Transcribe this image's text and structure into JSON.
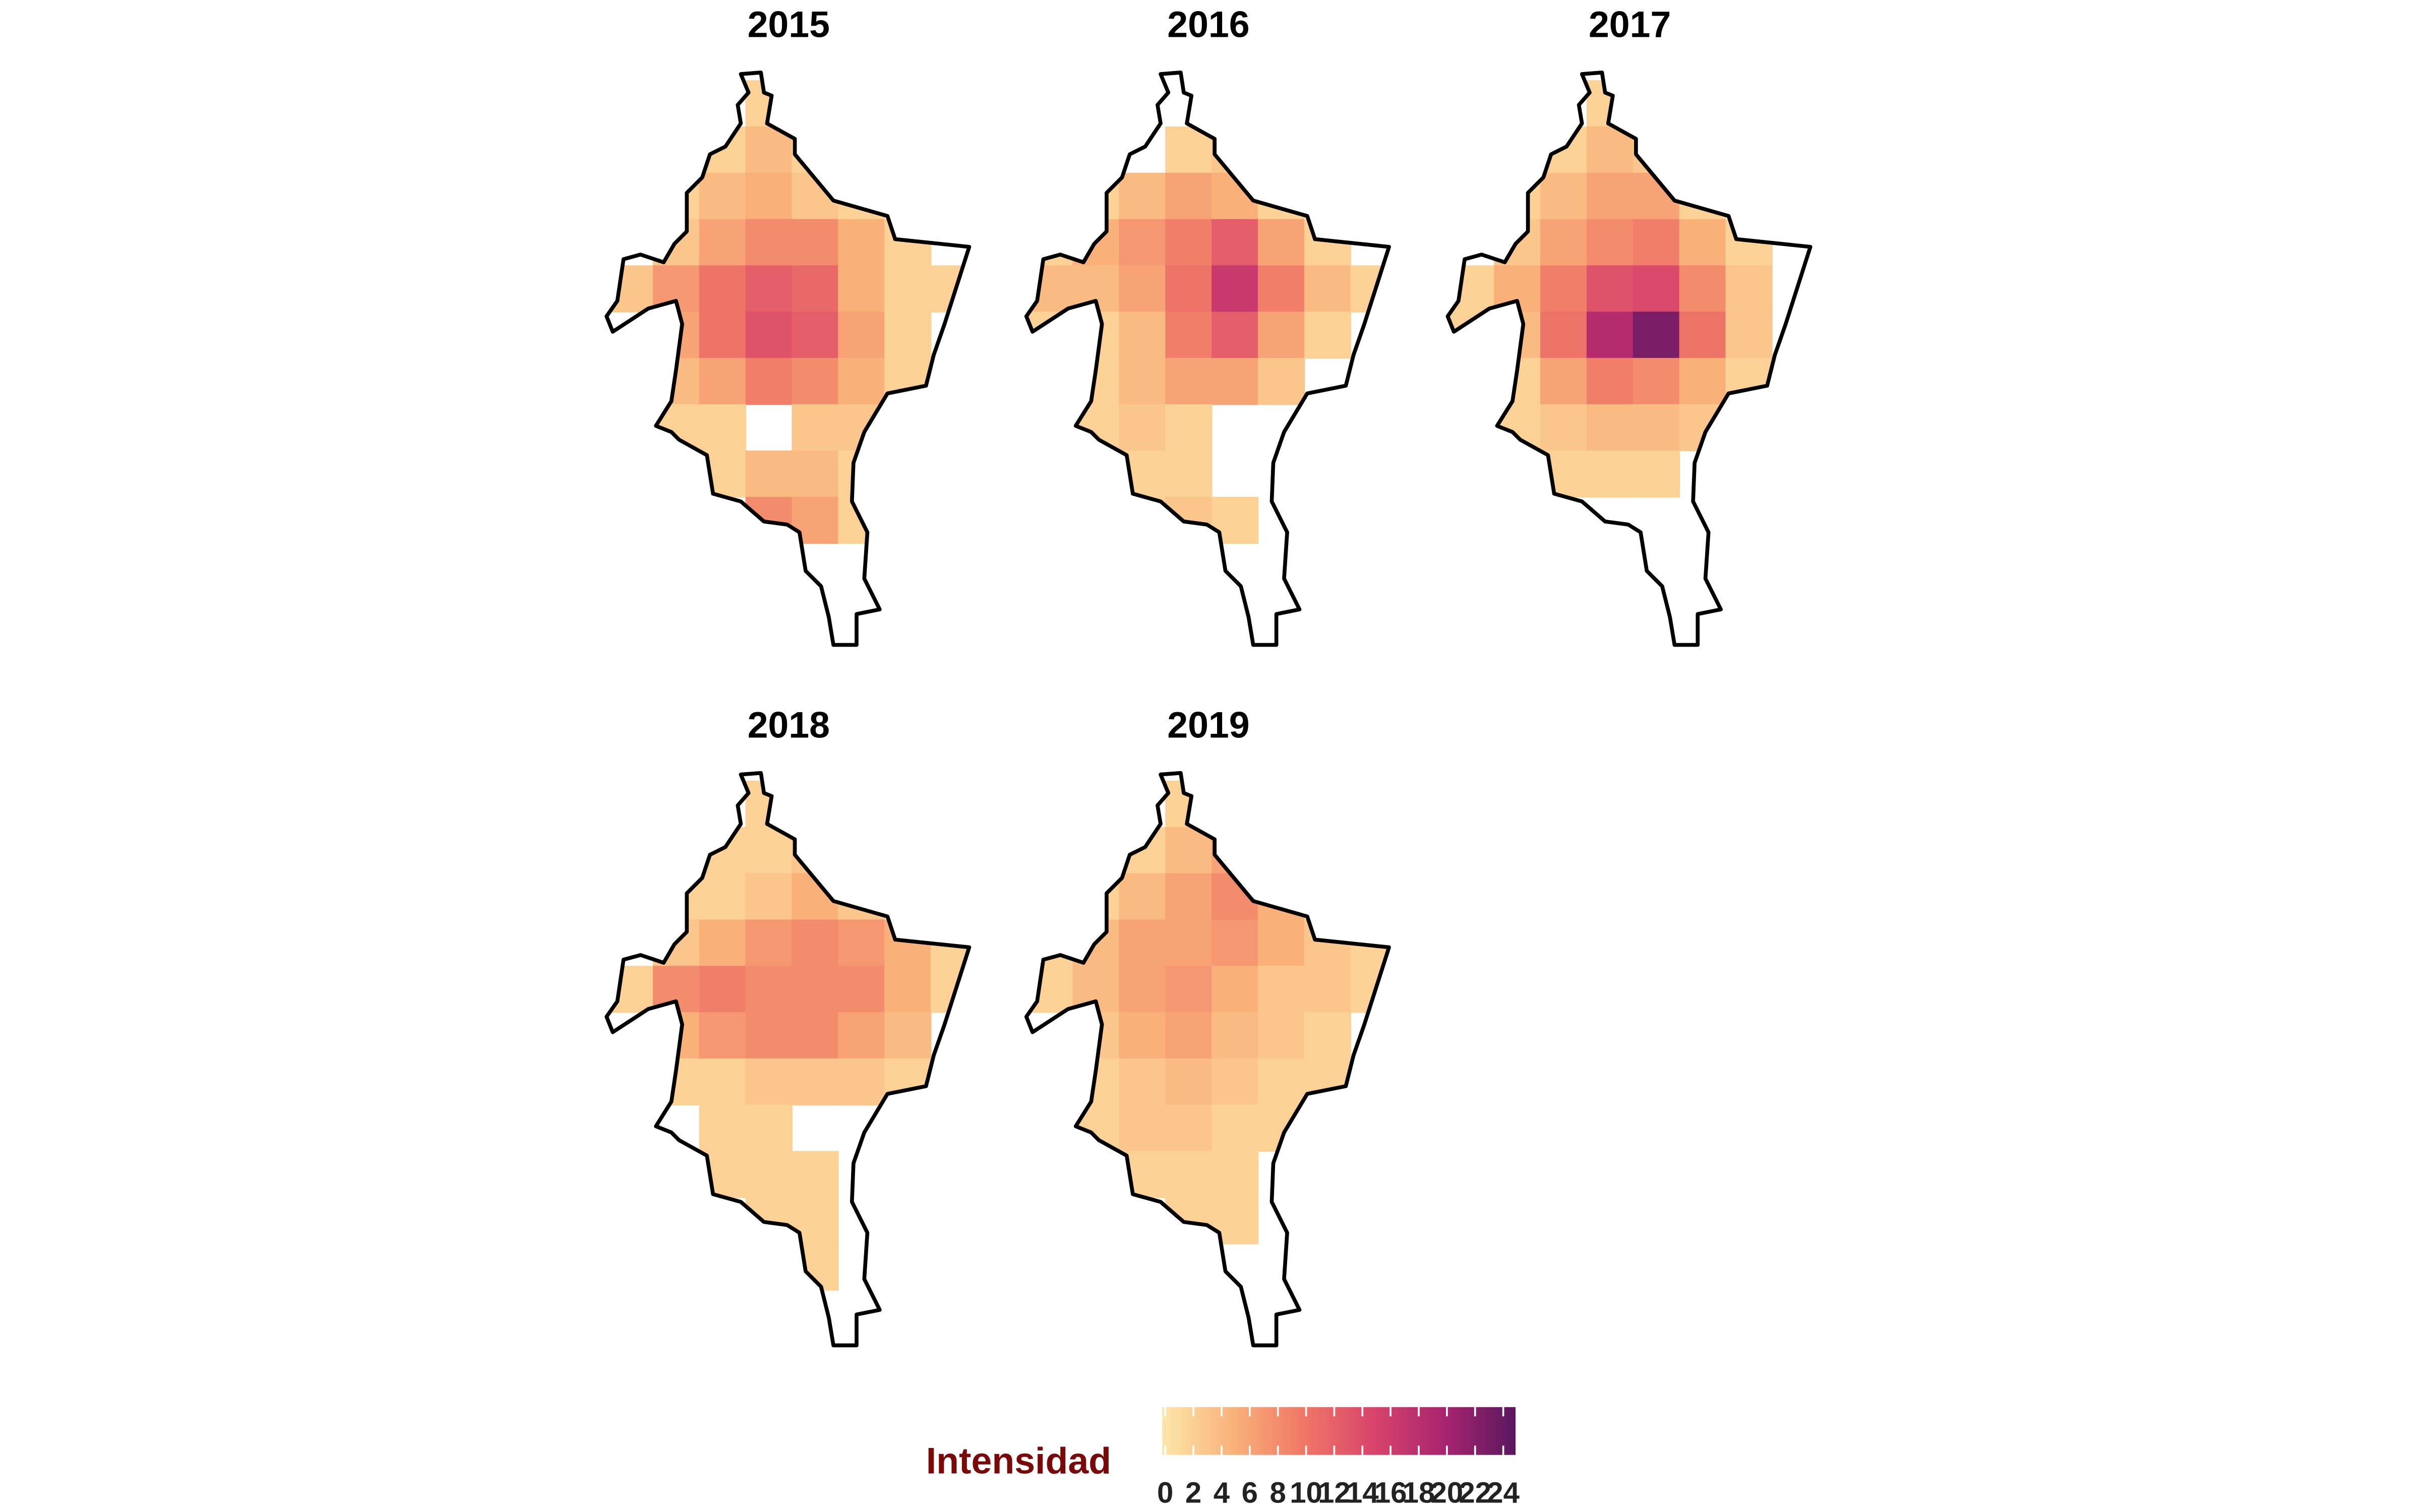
{
  "chart_data": {
    "type": "heatmap",
    "panels": [
      {
        "title": "2015",
        "values": [
          [
            null,
            null,
            null,
            2,
            null,
            null,
            null,
            null
          ],
          [
            null,
            null,
            2,
            4,
            2,
            null,
            null,
            null
          ],
          [
            null,
            2,
            4,
            5,
            3,
            2,
            null,
            null
          ],
          [
            null,
            3,
            6,
            8,
            8,
            5,
            2,
            null
          ],
          [
            3,
            7,
            10,
            12,
            11,
            5,
            2,
            2
          ],
          [
            null,
            6,
            10,
            13,
            12,
            6,
            2,
            null
          ],
          [
            null,
            4,
            6,
            9,
            8,
            5,
            2,
            null
          ],
          [
            null,
            2,
            2,
            null,
            3,
            3,
            null,
            null
          ],
          [
            null,
            null,
            2,
            4,
            4,
            2,
            null,
            null
          ],
          [
            null,
            null,
            null,
            8,
            6,
            2,
            null,
            null
          ],
          [
            null,
            null,
            null,
            null,
            null,
            null,
            null,
            null
          ],
          [
            null,
            null,
            null,
            null,
            null,
            null,
            null,
            null
          ]
        ]
      },
      {
        "title": "2016",
        "values": [
          [
            null,
            null,
            null,
            null,
            null,
            null,
            null,
            null
          ],
          [
            null,
            null,
            null,
            2,
            3,
            null,
            null,
            null
          ],
          [
            null,
            2,
            4,
            6,
            5,
            2,
            null,
            null
          ],
          [
            2,
            5,
            7,
            9,
            12,
            6,
            2,
            null
          ],
          [
            4,
            4,
            6,
            10,
            16,
            9,
            4,
            2
          ],
          [
            2,
            2,
            4,
            9,
            12,
            6,
            2,
            null
          ],
          [
            null,
            2,
            4,
            6,
            6,
            3,
            null,
            null
          ],
          [
            null,
            2,
            3,
            2,
            null,
            null,
            null,
            null
          ],
          [
            null,
            2,
            2,
            2,
            null,
            null,
            null,
            null
          ],
          [
            null,
            null,
            2,
            3,
            2,
            null,
            null,
            null
          ],
          [
            null,
            null,
            null,
            null,
            null,
            null,
            null,
            null
          ],
          [
            null,
            null,
            null,
            null,
            null,
            null,
            null,
            null
          ]
        ]
      },
      {
        "title": "2017",
        "values": [
          [
            null,
            null,
            null,
            2,
            null,
            null,
            null,
            null
          ],
          [
            null,
            null,
            2,
            4,
            3,
            null,
            null,
            null
          ],
          [
            null,
            2,
            4,
            6,
            6,
            2,
            null,
            null
          ],
          [
            null,
            3,
            6,
            8,
            9,
            5,
            2,
            null
          ],
          [
            2,
            5,
            9,
            13,
            14,
            8,
            3,
            null
          ],
          [
            2,
            4,
            10,
            18,
            22,
            10,
            3,
            null
          ],
          [
            null,
            2,
            6,
            9,
            8,
            5,
            2,
            null
          ],
          [
            null,
            2,
            3,
            4,
            4,
            3,
            null,
            null
          ],
          [
            null,
            null,
            2,
            2,
            2,
            null,
            null,
            null
          ],
          [
            null,
            null,
            null,
            null,
            null,
            null,
            null,
            null
          ],
          [
            null,
            null,
            null,
            null,
            null,
            null,
            null,
            null
          ],
          [
            null,
            null,
            null,
            null,
            null,
            null,
            null,
            null
          ]
        ]
      },
      {
        "title": "2018",
        "values": [
          [
            null,
            null,
            null,
            2,
            null,
            null,
            null,
            null
          ],
          [
            null,
            null,
            2,
            2,
            3,
            null,
            null,
            null
          ],
          [
            null,
            2,
            2,
            3,
            5,
            3,
            null,
            null
          ],
          [
            null,
            3,
            5,
            7,
            8,
            7,
            5,
            2
          ],
          [
            2,
            8,
            9,
            8,
            8,
            8,
            5,
            2
          ],
          [
            null,
            5,
            7,
            8,
            8,
            6,
            4,
            null
          ],
          [
            null,
            2,
            2,
            3,
            3,
            3,
            2,
            null
          ],
          [
            null,
            null,
            2,
            2,
            null,
            null,
            null,
            null
          ],
          [
            null,
            null,
            2,
            2,
            2,
            null,
            null,
            null
          ],
          [
            null,
            null,
            null,
            2,
            2,
            null,
            null,
            null
          ],
          [
            null,
            null,
            null,
            null,
            2,
            null,
            null,
            null
          ],
          [
            null,
            null,
            null,
            null,
            null,
            null,
            null,
            null
          ]
        ]
      },
      {
        "title": "2019",
        "values": [
          [
            null,
            null,
            null,
            2,
            null,
            null,
            null,
            null
          ],
          [
            null,
            null,
            2,
            4,
            6,
            null,
            null,
            null
          ],
          [
            null,
            2,
            4,
            6,
            8,
            5,
            null,
            null
          ],
          [
            2,
            4,
            6,
            6,
            7,
            5,
            3,
            2
          ],
          [
            2,
            4,
            6,
            7,
            5,
            3,
            3,
            2
          ],
          [
            null,
            3,
            5,
            6,
            4,
            3,
            2,
            null
          ],
          [
            null,
            2,
            3,
            4,
            3,
            2,
            2,
            null
          ],
          [
            null,
            2,
            3,
            3,
            2,
            2,
            null,
            null
          ],
          [
            null,
            null,
            2,
            2,
            2,
            null,
            null,
            null
          ],
          [
            null,
            null,
            null,
            2,
            2,
            null,
            null,
            null
          ],
          [
            null,
            null,
            null,
            null,
            null,
            null,
            null,
            null
          ],
          [
            null,
            null,
            null,
            null,
            null,
            null,
            null,
            null
          ]
        ]
      }
    ],
    "legend": {
      "title": "Intensidad",
      "lim": [
        0,
        24
      ],
      "ticks": [
        0,
        2,
        4,
        6,
        8,
        10,
        12,
        14,
        16,
        18,
        20,
        22,
        24
      ],
      "colors": [
        "#fde7a9",
        "#f9b27a",
        "#f07766",
        "#d8446c",
        "#a8246f",
        "#5a1760"
      ]
    }
  }
}
